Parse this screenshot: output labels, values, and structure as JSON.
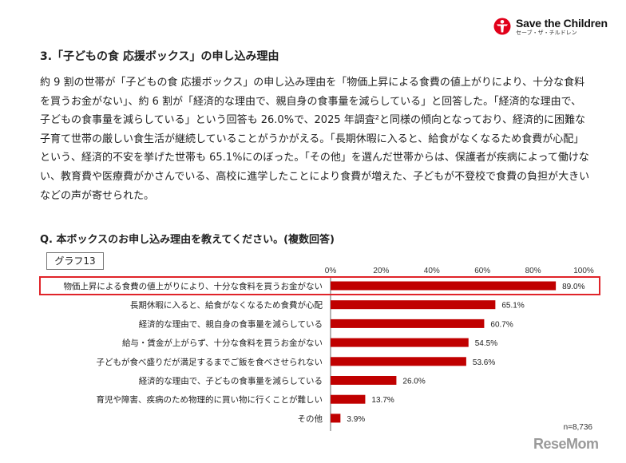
{
  "logo": {
    "name": "Save the Children",
    "sub": "セーブ・ザ・チルドレン"
  },
  "heading": "3.「子どもの食 応援ボックス」の申し込み理由",
  "paragraph": "約 9 割の世帯が「子どもの食 応援ボックス」の申し込み理由を「物価上昇による食費の値上がりにより、十分な食料を買うお金がない」、約 6 割が「経済的な理由で、親自身の食事量を減らしている」と回答した。「経済的な理由で、子どもの食事量を減らしている」という回答も 26.0%で、2025 年調査²と同様の傾向となっており、経済的に困難な子育て世帯の厳しい食生活が継続していることがうかがえる。「長期休暇に入ると、給食がなくなるため食費が心配」という、経済的不安を挙げた世帯も 65.1%にのぼった。「その他」を選んだ世帯からは、保護者が疾病によって働けない、教育費や医療費がかさんでいる、高校に進学したことにより食費が増えた、子どもが不登校で食費の負担が大きいなどの声が寄せられた。",
  "question": "Q. 本ボックスのお申し込み理由を教えてください。(複数回答)",
  "graph_label": "グラフ13",
  "watermark": "ReseMom",
  "chart_data": {
    "type": "bar",
    "orientation": "horizontal",
    "xlim": [
      0,
      100
    ],
    "ticks": [
      "0%",
      "20%",
      "40%",
      "60%",
      "80%",
      "100%"
    ],
    "tick_values": [
      0,
      20,
      40,
      60,
      80,
      100
    ],
    "categories": [
      "物価上昇による食費の値上がりにより、十分な食料を買うお金がない",
      "長期休暇に入ると、給食がなくなるため食費が心配",
      "経済的な理由で、親自身の食事量を減らしている",
      "給与・賃金が上がらず、十分な食料を買うお金がない",
      "子どもが食べ盛りだが満足するまでご飯を食べさせられない",
      "経済的な理由で、子どもの食事量を減らしている",
      "育児や障害、疾病のため物理的に買い物に行くことが難しい",
      "その他"
    ],
    "values": [
      89.0,
      65.1,
      60.7,
      54.5,
      53.6,
      26.0,
      13.7,
      3.9
    ],
    "value_labels": [
      "89.0%",
      "65.1%",
      "60.7%",
      "54.5%",
      "53.6%",
      "26.0%",
      "13.7%",
      "3.9%"
    ],
    "highlighted_index": 0,
    "bar_color": "#c00000",
    "highlight_border_color": "#e0242a",
    "note": "n=8,736"
  }
}
